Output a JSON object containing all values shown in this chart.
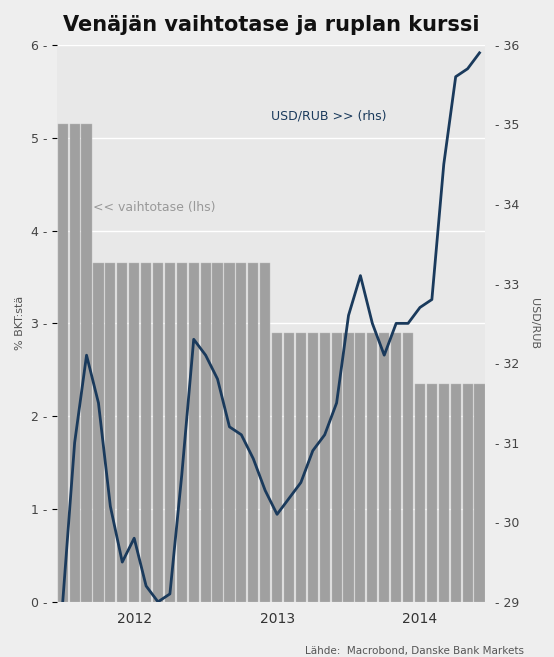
{
  "title": "Venäjän vaihtotase ja ruplan kurssi",
  "ylabel_left": "% BKT:stä",
  "ylabel_right": "USD/RUB",
  "source": "Lähde:  Macrobond, Danske Bank Markets",
  "label_bar": "<< vaihtotase (lhs)",
  "label_line": "USD/RUB >> (rhs)",
  "fig_bg_color": "#eeeeee",
  "plot_bg_color": "#e8e8e8",
  "bar_color": "#a0a0a0",
  "line_color": "#1a3a5c",
  "bar_edge_color": "#bbbbbb",
  "ylim_left": [
    0,
    6
  ],
  "ylim_right": [
    29,
    36
  ],
  "yticks_left": [
    0,
    1,
    2,
    3,
    4,
    5,
    6
  ],
  "yticks_right": [
    29,
    30,
    31,
    32,
    33,
    34,
    35,
    36
  ],
  "bar_values": [
    5.15,
    5.15,
    5.15,
    3.65,
    3.65,
    3.65,
    3.65,
    3.65,
    3.65,
    3.65,
    3.65,
    3.65,
    3.65,
    3.65,
    3.65,
    3.65,
    3.65,
    3.65,
    2.9,
    2.9,
    2.9,
    2.9,
    2.9,
    2.9,
    2.9,
    2.9,
    2.9,
    2.9,
    2.9,
    2.9,
    2.35,
    2.35,
    2.35,
    2.35,
    2.35,
    2.35
  ],
  "line_values": [
    29.0,
    31.0,
    32.1,
    31.5,
    30.2,
    29.5,
    29.8,
    29.2,
    29.0,
    29.1,
    30.6,
    32.3,
    32.1,
    31.8,
    31.2,
    31.1,
    30.8,
    30.4,
    30.1,
    30.3,
    30.5,
    30.9,
    31.1,
    31.5,
    32.6,
    33.1,
    32.5,
    32.1,
    32.5,
    32.5,
    32.7,
    32.8,
    34.5,
    35.6,
    35.7,
    35.9
  ],
  "n_bars": 36,
  "xtick_positions": [
    6,
    18,
    30
  ],
  "xtick_labels": [
    "2012",
    "2013",
    "2014"
  ],
  "title_fontsize": 15,
  "axis_label_fontsize": 8,
  "tick_fontsize": 9,
  "annotation_fontsize": 9
}
